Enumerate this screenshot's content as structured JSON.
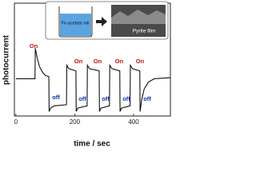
{
  "chart_data": {
    "type": "line",
    "xlabel": "time / sec",
    "ylabel": "photocurrent",
    "xlim": [
      -5,
      525
    ],
    "xticks": [
      0,
      200,
      400
    ],
    "ylim": [
      0,
      10
    ],
    "color": "#111111",
    "x": [
      0,
      65,
      66,
      72,
      80,
      90,
      100,
      112,
      113,
      118,
      130,
      172,
      173,
      180,
      204,
      205,
      210,
      242,
      243,
      250,
      283,
      284,
      289,
      318,
      319,
      326,
      353,
      354,
      359,
      388,
      389,
      396,
      421,
      422,
      428,
      436,
      450,
      470,
      525
    ],
    "values": [
      3.3,
      3.3,
      6.0,
      5.2,
      4.4,
      3.9,
      3.6,
      3.5,
      0.4,
      0.7,
      0.9,
      1.0,
      4.5,
      4.2,
      4.0,
      0.4,
      0.7,
      0.9,
      4.5,
      4.2,
      4.0,
      0.4,
      0.7,
      0.9,
      4.5,
      4.2,
      4.0,
      0.4,
      0.7,
      0.9,
      4.5,
      4.2,
      4.0,
      0.4,
      1.5,
      2.4,
      3.0,
      3.3,
      3.4
    ],
    "annotations": [
      {
        "text": "On",
        "color": "#cc1111"
      },
      {
        "text": "off",
        "color": "#1133aa"
      },
      {
        "text": "On",
        "color": "#cc1111"
      },
      {
        "text": "off",
        "color": "#1133aa"
      },
      {
        "text": "On",
        "color": "#cc1111"
      },
      {
        "text": "off",
        "color": "#1133aa"
      },
      {
        "text": "On",
        "color": "#cc1111"
      },
      {
        "text": "off",
        "color": "#1133aa"
      },
      {
        "text": "On",
        "color": "#cc1111"
      },
      {
        "text": "off",
        "color": "#1133aa"
      }
    ]
  },
  "inset": {
    "beaker_label": "Fe-acetate ink",
    "film_label": "Pyrite film"
  }
}
